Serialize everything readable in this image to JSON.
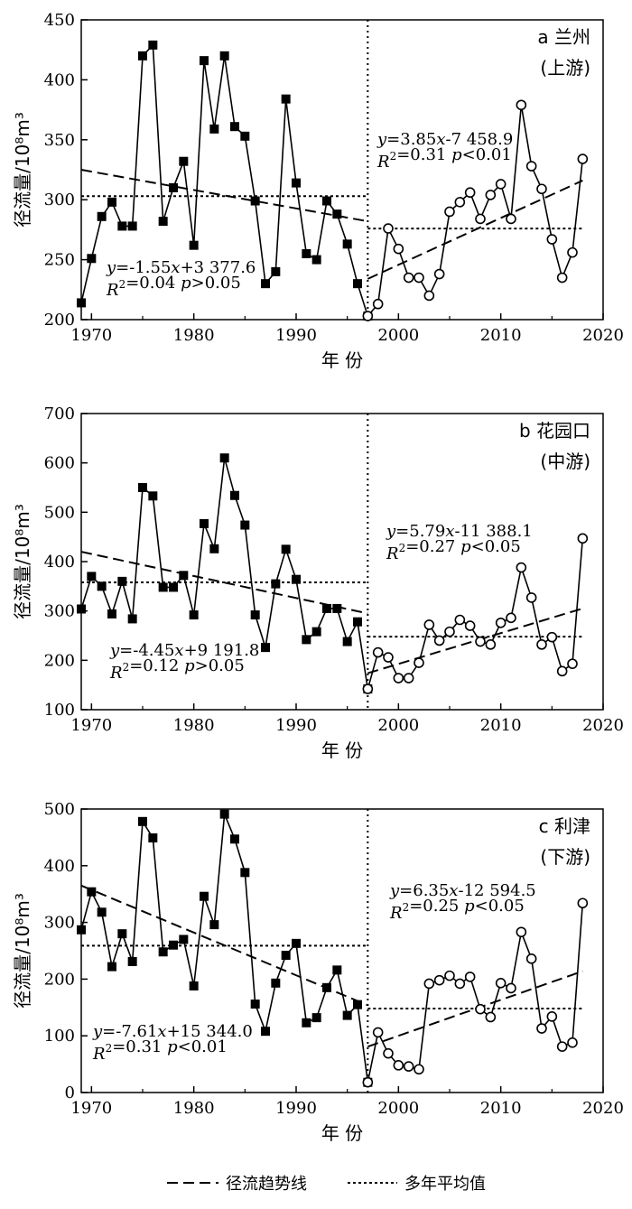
{
  "chart_data": [
    {
      "type": "line",
      "id": "a",
      "panel_label": "a 兰州",
      "panel_sublabel": "(上游)",
      "xlabel": "年 份",
      "ylabel": "径流量/10⁸m³",
      "xlim": [
        1969,
        2020
      ],
      "ylim": [
        200,
        450
      ],
      "xticks": [
        1970,
        1980,
        1990,
        2000,
        2010,
        2020
      ],
      "yticks": [
        200,
        250,
        300,
        350,
        400,
        450
      ],
      "break_year": 1997,
      "series": [
        {
          "marker": "filled-square",
          "x": [
            1969,
            1970,
            1971,
            1972,
            1973,
            1974,
            1975,
            1976,
            1977,
            1978,
            1979,
            1980,
            1981,
            1982,
            1983,
            1984,
            1985,
            1986,
            1987,
            1988,
            1989,
            1990,
            1991,
            1992,
            1993,
            1994,
            1995,
            1996,
            1997
          ],
          "y": [
            214,
            251,
            286,
            298,
            278,
            278,
            420,
            429,
            282,
            310,
            332,
            262,
            416,
            359,
            420,
            361,
            353,
            299,
            230,
            240,
            384,
            314,
            255,
            250,
            299,
            288,
            263,
            230,
            203
          ]
        },
        {
          "marker": "open-circle",
          "x": [
            1997,
            1998,
            1999,
            2000,
            2001,
            2002,
            2003,
            2004,
            2005,
            2006,
            2007,
            2008,
            2009,
            2010,
            2011,
            2012,
            2013,
            2014,
            2015,
            2016,
            2017,
            2018
          ],
          "y": [
            203,
            213,
            276,
            259,
            235,
            235,
            220,
            238,
            290,
            298,
            306,
            284,
            304,
            313,
            284,
            379,
            328,
            309,
            267,
            235,
            256,
            334
          ]
        }
      ],
      "trend_lines": [
        {
          "x": [
            1969,
            1997
          ],
          "y": [
            325,
            282
          ]
        },
        {
          "x": [
            1997,
            2018
          ],
          "y": [
            234,
            316
          ]
        }
      ],
      "mean_lines": [
        {
          "x": [
            1969,
            1997
          ],
          "y": [
            303,
            303
          ]
        },
        {
          "x": [
            1997,
            2018
          ],
          "y": [
            276,
            276
          ]
        }
      ],
      "annotations": [
        {
          "lines": [
            "y=-1.55x+3 377.6",
            "R²=0.04  p>0.05"
          ],
          "position": "bottom-left"
        },
        {
          "lines": [
            "y=3.85x-7 458.9",
            "R²=0.31  p<0.01"
          ],
          "position": "top-right"
        }
      ]
    },
    {
      "type": "line",
      "id": "b",
      "panel_label": "b 花园口",
      "panel_sublabel": "(中游)",
      "xlabel": "年 份",
      "ylabel": "径流量/10⁸m³",
      "xlim": [
        1969,
        2020
      ],
      "ylim": [
        100,
        700
      ],
      "xticks": [
        1970,
        1980,
        1990,
        2000,
        2010,
        2020
      ],
      "yticks": [
        100,
        200,
        300,
        400,
        500,
        600,
        700
      ],
      "break_year": 1997,
      "series": [
        {
          "marker": "filled-square",
          "x": [
            1969,
            1970,
            1971,
            1972,
            1973,
            1974,
            1975,
            1976,
            1977,
            1978,
            1979,
            1980,
            1981,
            1982,
            1983,
            1984,
            1985,
            1986,
            1987,
            1988,
            1989,
            1990,
            1991,
            1992,
            1993,
            1994,
            1995,
            1996,
            1997
          ],
          "y": [
            304,
            370,
            350,
            294,
            360,
            284,
            550,
            533,
            348,
            348,
            372,
            292,
            477,
            426,
            610,
            534,
            474,
            292,
            226,
            355,
            425,
            364,
            242,
            258,
            305,
            305,
            238,
            278,
            142
          ]
        },
        {
          "marker": "open-circle",
          "x": [
            1997,
            1998,
            1999,
            2000,
            2001,
            2002,
            2003,
            2004,
            2005,
            2006,
            2007,
            2008,
            2009,
            2010,
            2011,
            2012,
            2013,
            2014,
            2015,
            2016,
            2017,
            2018
          ],
          "y": [
            142,
            216,
            206,
            164,
            164,
            195,
            272,
            240,
            258,
            282,
            270,
            238,
            232,
            276,
            286,
            388,
            327,
            232,
            247,
            178,
            193,
            447
          ]
        }
      ],
      "trend_lines": [
        {
          "x": [
            1969,
            1997
          ],
          "y": [
            420,
            295
          ]
        },
        {
          "x": [
            1997,
            2018
          ],
          "y": [
            174,
            305
          ]
        }
      ],
      "mean_lines": [
        {
          "x": [
            1969,
            1997
          ],
          "y": [
            358,
            358
          ]
        },
        {
          "x": [
            1997,
            2018
          ],
          "y": [
            248,
            248
          ]
        }
      ],
      "annotations": [
        {
          "lines": [
            "y=-4.45x+9 191.8",
            "R²=0.12  p>0.05"
          ],
          "position": "bottom-left"
        },
        {
          "lines": [
            "y=5.79x-11 388.1",
            "R²=0.27  p<0.05"
          ],
          "position": "top-right"
        }
      ]
    },
    {
      "type": "line",
      "id": "c",
      "panel_label": "c 利津",
      "panel_sublabel": "(下游)",
      "xlabel": "年 份",
      "ylabel": "径流量/10⁸m³",
      "xlim": [
        1969,
        2020
      ],
      "ylim": [
        0,
        500
      ],
      "xticks": [
        1970,
        1980,
        1990,
        2000,
        2010,
        2020
      ],
      "yticks": [
        0,
        100,
        200,
        300,
        400,
        500
      ],
      "break_year": 1997,
      "series": [
        {
          "marker": "filled-square",
          "x": [
            1969,
            1970,
            1971,
            1972,
            1973,
            1974,
            1975,
            1976,
            1977,
            1978,
            1979,
            1980,
            1981,
            1982,
            1983,
            1984,
            1985,
            1986,
            1987,
            1988,
            1989,
            1990,
            1991,
            1992,
            1993,
            1994,
            1995,
            1996,
            1997
          ],
          "y": [
            287,
            354,
            318,
            222,
            280,
            231,
            478,
            449,
            248,
            260,
            270,
            188,
            346,
            296,
            491,
            447,
            388,
            156,
            108,
            193,
            242,
            263,
            123,
            132,
            185,
            216,
            136,
            155,
            18
          ]
        },
        {
          "marker": "open-circle",
          "x": [
            1997,
            1998,
            1999,
            2000,
            2001,
            2002,
            2003,
            2004,
            2005,
            2006,
            2007,
            2008,
            2009,
            2010,
            2011,
            2012,
            2013,
            2014,
            2015,
            2016,
            2017,
            2018
          ],
          "y": [
            18,
            106,
            69,
            48,
            46,
            41,
            192,
            198,
            206,
            192,
            204,
            147,
            133,
            193,
            184,
            283,
            236,
            113,
            134,
            81,
            88,
            334
          ]
        }
      ],
      "trend_lines": [
        {
          "x": [
            1969,
            1997
          ],
          "y": [
            365,
            154
          ]
        },
        {
          "x": [
            1997,
            2018
          ],
          "y": [
            81,
            214
          ]
        }
      ],
      "mean_lines": [
        {
          "x": [
            1969,
            1997
          ],
          "y": [
            259,
            259
          ]
        },
        {
          "x": [
            1997,
            2018
          ],
          "y": [
            148,
            148
          ]
        }
      ],
      "annotations": [
        {
          "lines": [
            "y=-7.61x+15 344.0",
            "R²=0.31  p<0.01"
          ],
          "position": "bottom-left"
        },
        {
          "lines": [
            "y=6.35x-12 594.5",
            "R²=0.25  p<0.05"
          ],
          "position": "top-right"
        }
      ]
    }
  ],
  "legend": {
    "placement": "bottom-center",
    "items": [
      {
        "label": "径流趋势线",
        "style": "dashed"
      },
      {
        "label": "多年平均值",
        "style": "dotted"
      }
    ]
  }
}
